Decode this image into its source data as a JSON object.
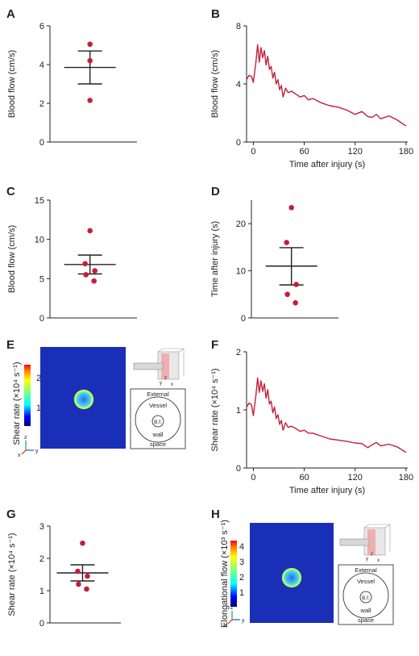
{
  "panels": {
    "A": {
      "letter": "A"
    },
    "B": {
      "letter": "B"
    },
    "C": {
      "letter": "C"
    },
    "D": {
      "letter": "D"
    },
    "E": {
      "letter": "E"
    },
    "F": {
      "letter": "F"
    },
    "G": {
      "letter": "G"
    },
    "H": {
      "letter": "H"
    }
  },
  "insets": {
    "E": {
      "colorbar_ticks": [
        "2",
        "1"
      ],
      "ylabel": "Shear rate (×10⁴ s⁻¹)",
      "labels": {
        "external": "External",
        "vessel": "Vessel",
        "bf": "B.f.",
        "wall": "wall",
        "space": "space"
      }
    },
    "H": {
      "colorbar_ticks": [
        "4",
        "3",
        "2",
        "1"
      ],
      "ylabel": "Elongational flow (×10³ s⁻¹)",
      "labels": {
        "external": "External",
        "vessel": "Vessel",
        "bf": "B.f.",
        "wall": "wall",
        "space": "space"
      }
    }
  },
  "colors": {
    "series": "#c41e3a",
    "field_bg": "#1a2fb8"
  },
  "chart_data": [
    {
      "panel": "A",
      "type": "scatter",
      "ylabel": "Blood flow (cm/s)",
      "xlabel": "",
      "ylim": [
        0,
        6
      ],
      "yticks": [
        0,
        2,
        4,
        6
      ],
      "points": [
        5.05,
        4.2,
        2.15
      ],
      "mean": 3.85,
      "sem": [
        3.0,
        4.7
      ]
    },
    {
      "panel": "B",
      "type": "line",
      "ylabel": "Blood flow (cm/s)",
      "xlabel": "Time after injury (s)",
      "xlim": [
        -8,
        182
      ],
      "ylim": [
        0,
        8
      ],
      "xticks": [
        0,
        60,
        120,
        180
      ],
      "yticks": [
        0,
        4,
        8
      ],
      "x": [
        -8,
        -5,
        -2,
        0,
        3,
        5,
        7,
        9,
        11,
        13,
        15,
        17,
        19,
        21,
        23,
        25,
        27,
        29,
        31,
        33,
        35,
        38,
        41,
        45,
        50,
        55,
        60,
        65,
        70,
        80,
        90,
        100,
        110,
        120,
        128,
        135,
        140,
        145,
        150,
        160,
        170,
        180
      ],
      "y": [
        4.3,
        4.6,
        4.5,
        4.1,
        5.5,
        6.7,
        5.5,
        6.5,
        5.8,
        6.3,
        5.3,
        5.9,
        5.0,
        5.2,
        4.4,
        4.8,
        4.0,
        4.3,
        3.6,
        3.9,
        3.1,
        3.7,
        3.4,
        3.5,
        3.3,
        3.1,
        3.2,
        2.9,
        3.0,
        2.7,
        2.5,
        2.4,
        2.2,
        1.9,
        2.1,
        1.75,
        1.7,
        1.9,
        1.6,
        1.8,
        1.5,
        1.1
      ]
    },
    {
      "panel": "C",
      "type": "scatter",
      "ylabel": "Blood flow (cm/s)",
      "xlabel": "",
      "ylim": [
        0,
        15
      ],
      "yticks": [
        0,
        5,
        10,
        15
      ],
      "points": [
        11.1,
        6.9,
        6.0,
        5.5,
        4.7
      ],
      "mean": 6.8,
      "sem": [
        5.6,
        8.0
      ]
    },
    {
      "panel": "D",
      "type": "scatter",
      "ylabel": "Time after injury (s)",
      "xlabel": "",
      "ylim": [
        0,
        25
      ],
      "yticks": [
        0,
        10,
        20
      ],
      "points": [
        23.4,
        16.0,
        7.1,
        5.0,
        3.2
      ],
      "mean": 11.0,
      "sem": [
        7.0,
        14.9
      ]
    },
    {
      "panel": "F",
      "type": "line",
      "ylabel": "Shear rate (×10⁴ s⁻¹)",
      "xlabel": "Time after injury (s)",
      "xlim": [
        -8,
        182
      ],
      "ylim": [
        0,
        2
      ],
      "xticks": [
        0,
        60,
        120,
        180
      ],
      "yticks": [
        0,
        1,
        2
      ],
      "x": [
        -8,
        -5,
        -2,
        0,
        3,
        5,
        7,
        9,
        11,
        13,
        15,
        17,
        19,
        21,
        23,
        25,
        27,
        29,
        31,
        33,
        35,
        38,
        41,
        45,
        50,
        55,
        60,
        65,
        70,
        80,
        90,
        100,
        110,
        120,
        128,
        135,
        140,
        145,
        150,
        160,
        170,
        180
      ],
      "y": [
        1.05,
        1.12,
        1.08,
        0.9,
        1.25,
        1.55,
        1.3,
        1.5,
        1.32,
        1.45,
        1.2,
        1.35,
        1.1,
        1.15,
        0.95,
        1.05,
        0.85,
        0.92,
        0.75,
        0.82,
        0.65,
        0.78,
        0.7,
        0.72,
        0.68,
        0.63,
        0.65,
        0.6,
        0.6,
        0.55,
        0.5,
        0.48,
        0.46,
        0.43,
        0.42,
        0.35,
        0.4,
        0.44,
        0.38,
        0.41,
        0.36,
        0.27
      ]
    },
    {
      "panel": "G",
      "type": "scatter",
      "ylabel": "Shear rate (×10⁴ s⁻¹)",
      "xlabel": "",
      "ylim": [
        0,
        3
      ],
      "yticks": [
        0,
        1,
        2,
        3
      ],
      "points": [
        2.47,
        1.6,
        1.45,
        1.2,
        1.05
      ],
      "mean": 1.55,
      "sem": [
        1.3,
        1.8
      ]
    }
  ]
}
